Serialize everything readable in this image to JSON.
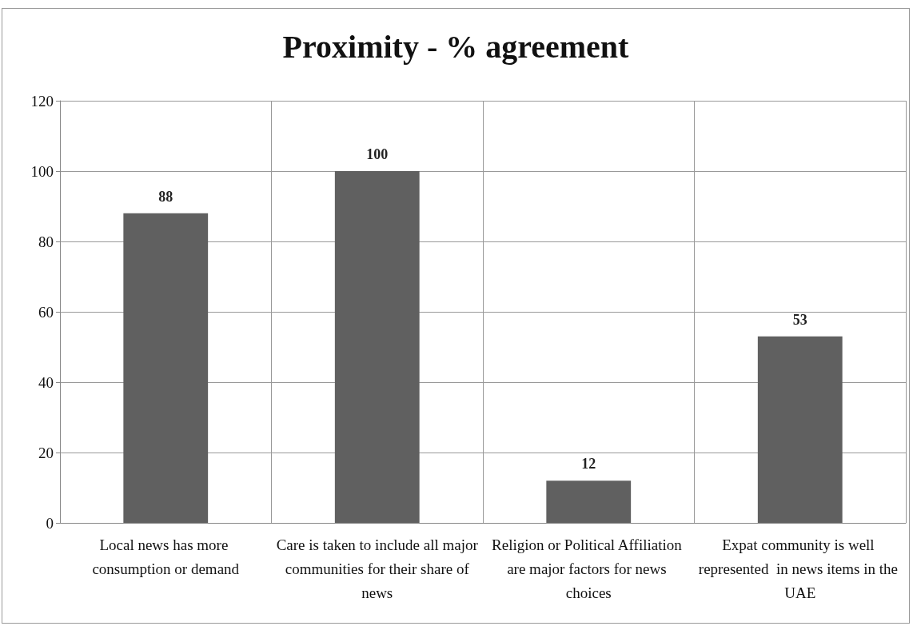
{
  "chart_data": {
    "type": "bar",
    "title": "Proximity - % agreement",
    "categories": [
      "Local news has more consumption or demand",
      "Care is taken to include all major communities for their share of news",
      "Religion or Political Affiliation are major factors for news choices",
      "Expat community is well represented  in news items in the UAE"
    ],
    "values": [
      88,
      100,
      12,
      53
    ],
    "color": "#606060",
    "ylim": [
      0,
      120
    ],
    "yticks": [
      0,
      20,
      40,
      60,
      80,
      100,
      120
    ],
    "grid": true,
    "data_labels": true
  }
}
